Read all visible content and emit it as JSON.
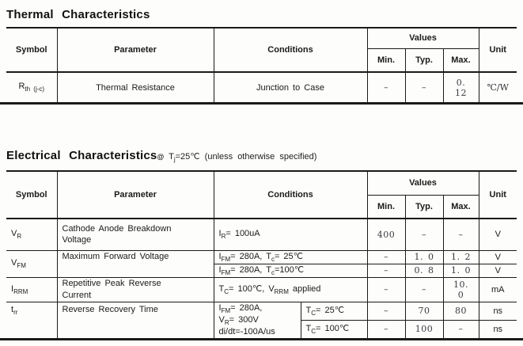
{
  "thermal": {
    "title": "Thermal Characteristics",
    "header": {
      "symbol": "Symbol",
      "parameter": "Parameter",
      "conditions": "Conditions",
      "values": "Values",
      "min": "Min.",
      "typ": "Typ.",
      "max": "Max.",
      "unit": "Unit"
    },
    "row": {
      "symbol": "R~th (j-c)~",
      "parameter": "Thermal Resistance",
      "conditions": "Junction to Case",
      "min": "–",
      "typ": "–",
      "max": "0. 12",
      "unit": "℃/W"
    }
  },
  "electrical": {
    "title": "Electrical Characteristics",
    "title_at": "@",
    "title_suffix": " T~j~=25℃ (unless otherwise specified)",
    "header": {
      "symbol": "Symbol",
      "parameter": "Parameter",
      "conditions": "Conditions",
      "values": "Values",
      "min": "Min.",
      "typ": "Typ.",
      "max": "Max.",
      "unit": "Unit"
    },
    "rows": {
      "vr": {
        "symbol": "V~R~",
        "parameter": "Cathode Anode Breakdown\nVoltage",
        "conditions": "I~R~= 100uA",
        "min": "400",
        "typ": "–",
        "max": "–",
        "unit": "V"
      },
      "vfm": {
        "symbol": "V~FM~",
        "parameter": "Maximum Forward Voltage",
        "cond1": "I~FM~= 280A,  T~c~=  25℃",
        "min1": "–",
        "typ1": "1. 0",
        "max1": "1. 2",
        "unit1": "V",
        "cond2": "I~FM~= 280A,  T~c~=100℃",
        "min2": "–",
        "typ2": "0. 8",
        "max2": "1. 0",
        "unit2": "V"
      },
      "irrm": {
        "symbol": "I~RRM~",
        "parameter": "Repetitive Peak Reverse\nCurrent",
        "conditions": "T~C~=  100℃, V~RRM~ applied",
        "min": "–",
        "typ": "–",
        "max": "10. 0",
        "unit": "mA"
      },
      "trr": {
        "symbol": "t~rr~",
        "parameter": "Reverse Recovery Time",
        "cond_main": "I~FM~=  280A,\nV~R~=  300V\ndi/dt=-100A/us",
        "cond1": "T~C~=  25℃",
        "min1": "–",
        "typ1": "70",
        "max1": "80",
        "unit1": "ns",
        "cond2": "T~C~=  100℃",
        "min2": "–",
        "typ2": "100",
        "max2": "–",
        "unit2": "ns"
      }
    }
  }
}
